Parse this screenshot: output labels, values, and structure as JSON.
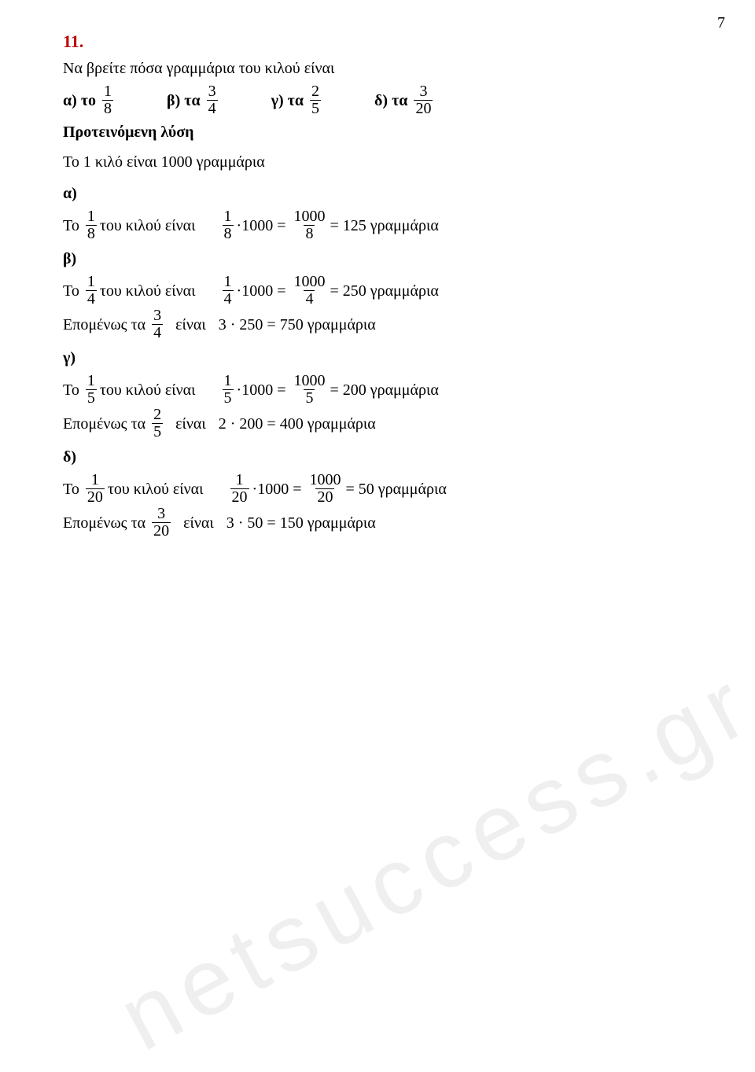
{
  "page_number": "7",
  "exercise_number": "11.",
  "prompt": "Να βρείτε πόσα γραμμάρια του κιλού είναι",
  "options": {
    "a_label": "α) το",
    "a_frac": {
      "n": "1",
      "d": "8"
    },
    "b_label": "β) τα",
    "b_frac": {
      "n": "3",
      "d": "4"
    },
    "c_label": "γ) τα",
    "c_frac": {
      "n": "2",
      "d": "5"
    },
    "d_label": "δ) τα",
    "d_frac": {
      "n": "3",
      "d": "20"
    }
  },
  "suggested": "Προτεινόμενη λύση",
  "intro": "Το 1 κιλό είναι 1000 γραμμάρια",
  "labels": {
    "a": "α)",
    "b": "β)",
    "c": "γ)",
    "d": "δ)"
  },
  "text": {
    "to": "Το",
    "tou_kilou_einai": "του κιλού είναι",
    "epomenos_ta": "Επομένως τα",
    "einai": "είναι",
    "grammaria": "γραμμάρια",
    "eq": "=",
    "mult_1000": "·1000 =",
    "dot": "·"
  },
  "a": {
    "unit": {
      "n": "1",
      "d": "8"
    },
    "mul": {
      "n": "1",
      "d": "8"
    },
    "fr": {
      "n": "1000",
      "d": "8"
    },
    "res": "= 125 γραμμάρια"
  },
  "b": {
    "unit": {
      "n": "1",
      "d": "4"
    },
    "mul": {
      "n": "1",
      "d": "4"
    },
    "fr": {
      "n": "1000",
      "d": "4"
    },
    "res": "= 250 γραμμάρια",
    "epi": {
      "n": "3",
      "d": "4"
    },
    "final": "3 · 250 = 750 γραμμάρια"
  },
  "c": {
    "unit": {
      "n": "1",
      "d": "5"
    },
    "mul": {
      "n": "1",
      "d": "5"
    },
    "fr": {
      "n": "1000",
      "d": "5"
    },
    "res": "= 200 γραμμάρια",
    "epi": {
      "n": "2",
      "d": "5"
    },
    "final": "2 · 200 = 400 γραμμάρια"
  },
  "d": {
    "unit": {
      "n": "1",
      "d": "20"
    },
    "mul": {
      "n": "1",
      "d": "20"
    },
    "fr": {
      "n": "1000",
      "d": "20"
    },
    "res": "= 50 γραμμάρια",
    "epi": {
      "n": "3",
      "d": "20"
    },
    "final": "3 · 50 = 150 γραμμάρια"
  },
  "watermark": {
    "left": "netsuccess",
    "dot": ".",
    "right": "gr"
  },
  "colors": {
    "accent": "#c00000",
    "text": "#000000",
    "bg": "#ffffff"
  }
}
